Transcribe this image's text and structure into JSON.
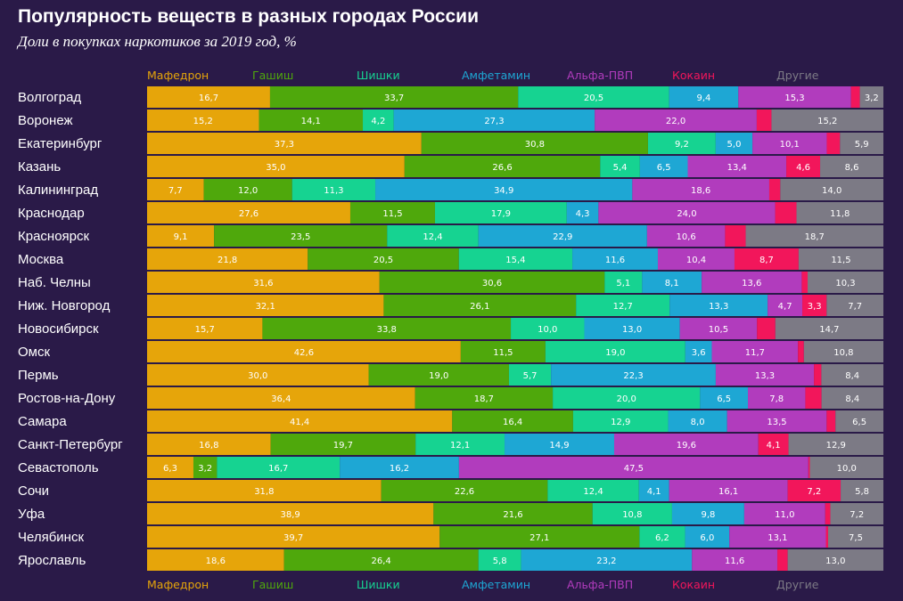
{
  "title": "Популярность веществ в разных городах России",
  "subtitle": "Доли в покупках наркотиков за 2019 год, %",
  "chart_data": {
    "type": "bar",
    "stacked": true,
    "orientation": "horizontal",
    "title": "Популярность веществ в разных городах России",
    "subtitle": "Доли в покупках наркотиков за 2019 год, %",
    "legend_placement": "top and bottom",
    "categories": [
      "Волгоград",
      "Воронеж",
      "Екатеринбург",
      "Казань",
      "Калининград",
      "Краснодар",
      "Красноярск",
      "Москва",
      "Наб. Челны",
      "Ниж. Новгород",
      "Новосибирск",
      "Омск",
      "Пермь",
      "Ростов-на-Дону",
      "Самара",
      "Санкт-Петербург",
      "Севастополь",
      "Сочи",
      "Уфа",
      "Челябинск",
      "Ярославль"
    ],
    "series": [
      {
        "name": "Мафедрон",
        "color": "#e6a50a",
        "values": [
          16.7,
          15.2,
          37.3,
          35.0,
          7.7,
          27.6,
          9.1,
          21.8,
          31.6,
          32.1,
          15.7,
          42.6,
          30.0,
          36.4,
          41.4,
          16.8,
          6.3,
          31.8,
          38.9,
          39.7,
          18.6
        ],
        "labels": [
          "16,7",
          "15,2",
          "37,3",
          "35,0",
          "7,7",
          "27,6",
          "9,1",
          "21,8",
          "31,6",
          "32,1",
          "15,7",
          "42,6",
          "30,0",
          "36,4",
          "41,4",
          "16,8",
          "6,3",
          "31,8",
          "38,9",
          "39,7",
          "18,6"
        ]
      },
      {
        "name": "Гашиш",
        "color": "#4fa80c",
        "values": [
          33.7,
          14.1,
          30.8,
          26.6,
          12.0,
          11.5,
          23.5,
          20.5,
          30.6,
          26.1,
          33.8,
          11.5,
          19.0,
          18.7,
          16.4,
          19.7,
          3.2,
          22.6,
          21.6,
          27.1,
          26.4
        ],
        "labels": [
          "33,7",
          "14,1",
          "30,8",
          "26,6",
          "12,0",
          "11,5",
          "23,5",
          "20,5",
          "30,6",
          "26,1",
          "33,8",
          "11,5",
          "19,0",
          "18,7",
          "16,4",
          "19,7",
          "3,2",
          "22,6",
          "21,6",
          "27,1",
          "26,4"
        ]
      },
      {
        "name": "Шишки",
        "color": "#16d391",
        "values": [
          20.5,
          4.2,
          9.2,
          5.4,
          11.3,
          17.9,
          12.4,
          15.4,
          5.1,
          12.7,
          10.0,
          19.0,
          5.7,
          20.0,
          12.9,
          12.1,
          16.7,
          12.4,
          10.8,
          6.2,
          5.8
        ],
        "labels": [
          "20,5",
          "4,2",
          "9,2",
          "5,4",
          "11,3",
          "17,9",
          "12,4",
          "15,4",
          "5,1",
          "12,7",
          "10,0",
          "19,0",
          "5,7",
          "20,0",
          "12,9",
          "12,1",
          "16,7",
          "12,4",
          "10,8",
          "6,2",
          "5,8"
        ]
      },
      {
        "name": "Амфетамин",
        "color": "#1ea7d4",
        "values": [
          9.4,
          27.3,
          5.0,
          6.5,
          34.9,
          4.3,
          22.9,
          11.6,
          8.1,
          13.3,
          13.0,
          3.6,
          22.3,
          6.5,
          8.0,
          14.9,
          16.2,
          4.1,
          9.8,
          6.0,
          23.2
        ],
        "labels": [
          "9,4",
          "27,3",
          "5,0",
          "6,5",
          "34,9",
          "4,3",
          "22,9",
          "11,6",
          "8,1",
          "13,3",
          "13,0",
          "3,6",
          "22,3",
          "6,5",
          "8,0",
          "14,9",
          "16,2",
          "4,1",
          "9,8",
          "6,0",
          "23,2"
        ]
      },
      {
        "name": "Альфа-ПВП",
        "color": "#b13cbd",
        "values": [
          15.3,
          22.0,
          10.1,
          13.4,
          18.6,
          24.0,
          10.6,
          10.4,
          13.6,
          4.7,
          10.5,
          11.7,
          13.3,
          7.8,
          13.5,
          19.6,
          47.5,
          16.1,
          11.0,
          13.1,
          11.6
        ],
        "labels": [
          "15,3",
          "22,0",
          "10,1",
          "13,4",
          "18,6",
          "24,0",
          "10,6",
          "10,4",
          "13,6",
          "4,7",
          "10,5",
          "11,7",
          "13,3",
          "7,8",
          "13,5",
          "19,6",
          "47,5",
          "16,1",
          "11,0",
          "13,1",
          "11,6"
        ]
      },
      {
        "name": "Кокаин",
        "color": "#f2165b",
        "values": [
          1.2,
          2.0,
          1.8,
          4.6,
          1.5,
          2.9,
          2.8,
          8.7,
          0.8,
          3.3,
          2.5,
          0.8,
          1.0,
          2.2,
          1.2,
          4.1,
          0.2,
          7.2,
          0.7,
          0.3,
          1.4
        ],
        "labels": [
          "",
          "",
          "",
          "4,6",
          "",
          "",
          "",
          "8,7",
          "",
          "3,3",
          "",
          "",
          "",
          "",
          "",
          "4,1",
          "",
          "7,2",
          "",
          "",
          ""
        ]
      },
      {
        "name": "Другие",
        "color": "#7c7a85",
        "values": [
          3.2,
          15.2,
          5.9,
          8.6,
          14.0,
          11.8,
          18.7,
          11.5,
          10.3,
          7.7,
          14.7,
          10.8,
          8.4,
          8.4,
          6.5,
          12.9,
          10.0,
          5.8,
          7.2,
          7.5,
          13.0
        ],
        "labels": [
          "3,2",
          "15,2",
          "5,9",
          "8,6",
          "14,0",
          "11,8",
          "18,7",
          "11,5",
          "10,3",
          "7,7",
          "14,7",
          "10,8",
          "8,4",
          "8,4",
          "6,5",
          "12,9",
          "10,0",
          "5,8",
          "7,2",
          "7,5",
          "13,0"
        ]
      }
    ]
  }
}
